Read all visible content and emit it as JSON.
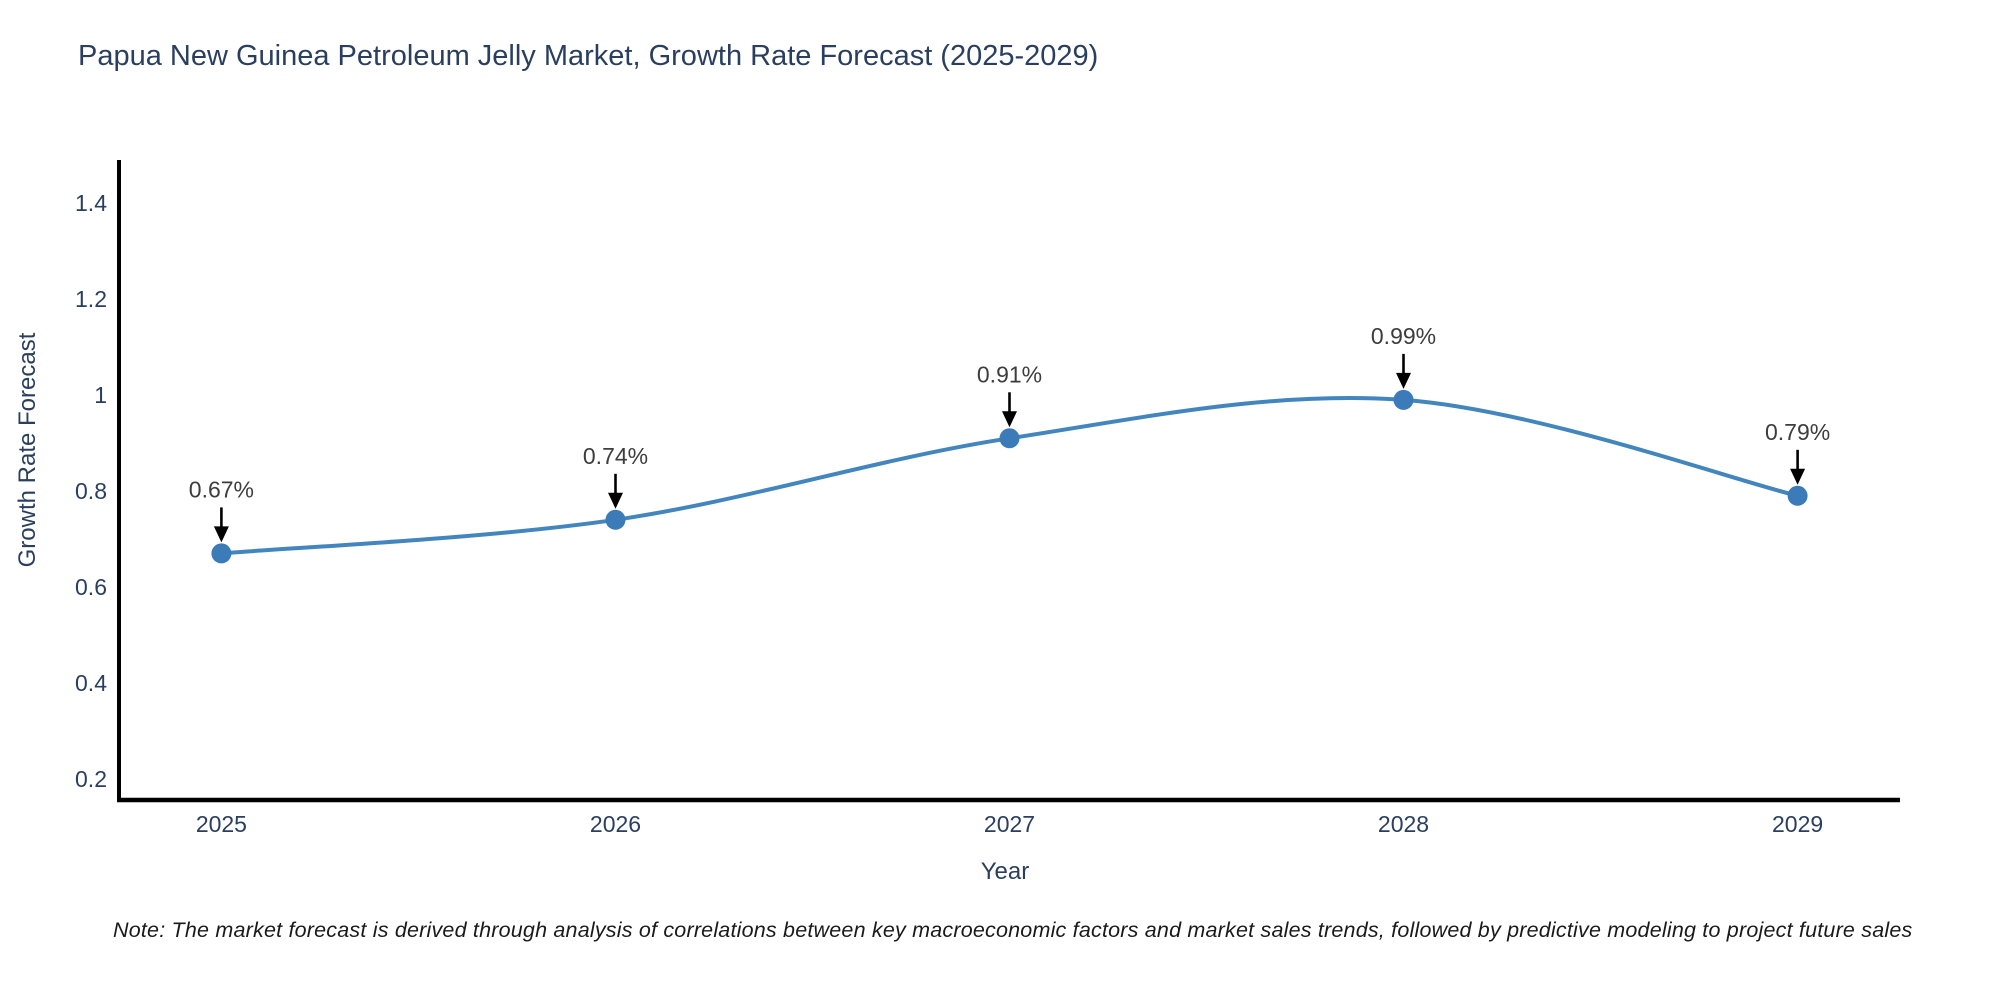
{
  "title": "Papua New Guinea Petroleum Jelly Market, Growth Rate Forecast (2025-2029)",
  "note": "Note: The market forecast is derived through analysis of correlations between key macroeconomic factors and market sales trends, followed by predictive modeling to project future sales",
  "chart_data": {
    "type": "line",
    "x": [
      2025,
      2026,
      2027,
      2028,
      2029
    ],
    "y": [
      0.67,
      0.74,
      0.91,
      0.99,
      0.79
    ],
    "point_labels": [
      "0.67%",
      "0.74%",
      "0.91%",
      "0.99%",
      "0.79%"
    ],
    "title": "Papua New Guinea Petroleum Jelly Market, Growth Rate Forecast (2025-2029)",
    "xlabel": "Year",
    "ylabel": "Growth Rate Forecast",
    "xticks": [
      2025,
      2026,
      2027,
      2028,
      2029
    ],
    "yticks": [
      0.2,
      0.4,
      0.6,
      0.8,
      1,
      1.2,
      1.4
    ],
    "xlim": [
      2024.74,
      2029.26
    ],
    "ylim": [
      0.156,
      1.49
    ],
    "line_shape": "spline",
    "grid": false,
    "legend_position": "none",
    "colors": {
      "line": "#4385bd",
      "marker": "#3b7cb8",
      "axis": "#000000",
      "tick_text": "#2a3f5f",
      "title_text": "#2a3f5f",
      "annotation_text": "#3d3d3d",
      "arrow": "#000000",
      "background": "#ffffff"
    }
  }
}
